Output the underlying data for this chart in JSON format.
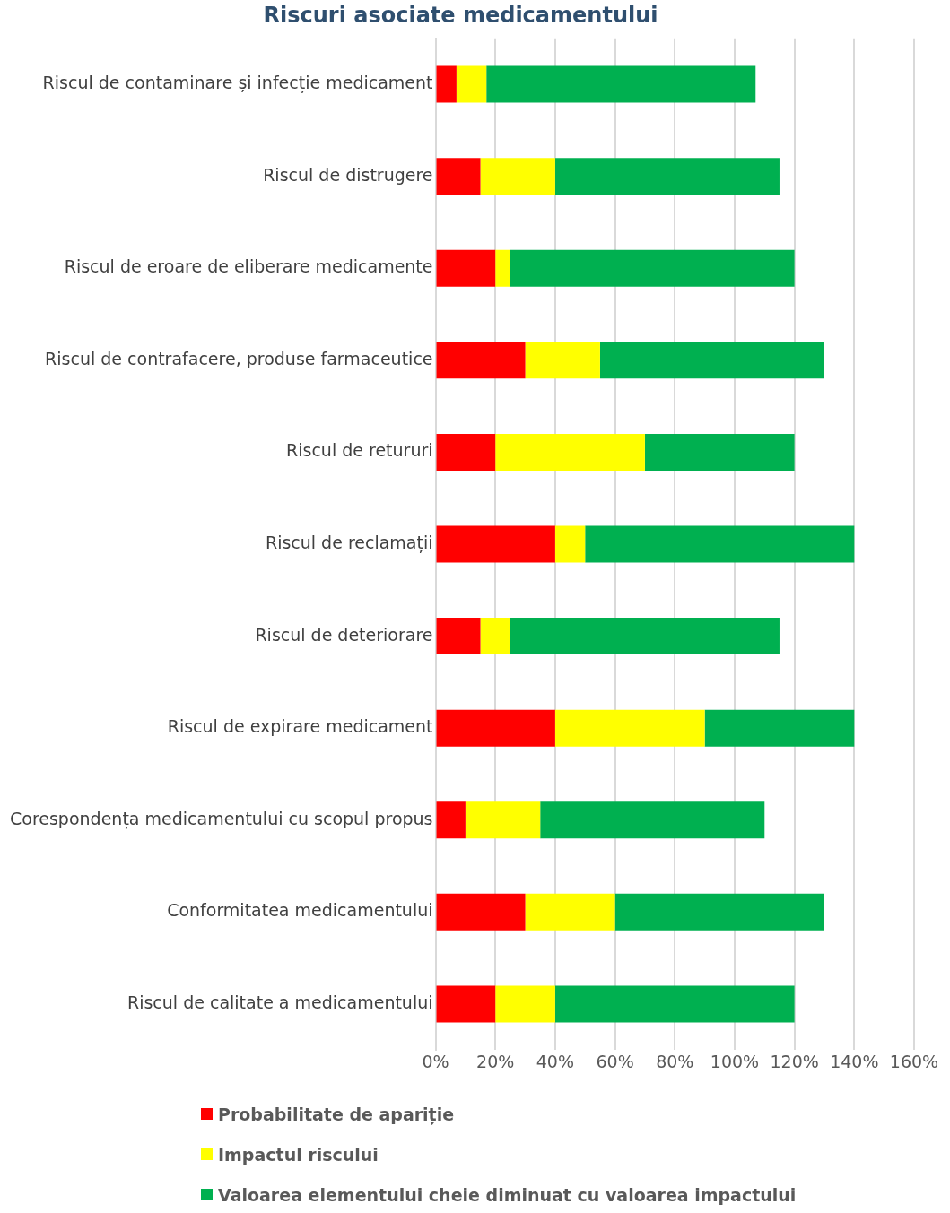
{
  "chart_data": {
    "type": "bar",
    "orientation": "horizontal",
    "stacked": true,
    "title": "Riscuri asociate medicamentului",
    "categories": [
      "Riscul de contaminare și infecție medicament",
      "Riscul de distrugere",
      "Riscul de eroare de eliberare medicamente",
      "Riscul de contrafacere, produse farmaceutice",
      "Riscul de retururi",
      "Riscul de reclamații",
      "Riscul de deteriorare",
      "Riscul de expirare medicament",
      "Corespondența medicamentului cu scopul propus",
      "Conformitatea medicamentului",
      "Riscul de calitate a medicamentului"
    ],
    "series": [
      {
        "name": "Probabilitate de apariție",
        "color": "#ff0000",
        "values": [
          7,
          15,
          20,
          30,
          20,
          40,
          15,
          40,
          10,
          30,
          20
        ]
      },
      {
        "name": "Impactul riscului",
        "color": "#ffff00",
        "values": [
          10,
          25,
          5,
          25,
          50,
          10,
          10,
          50,
          25,
          30,
          20
        ]
      },
      {
        "name": "Valoarea elementului cheie diminuat cu valoarea impactului",
        "color": "#00b050",
        "values": [
          90,
          75,
          95,
          75,
          50,
          90,
          90,
          50,
          75,
          70,
          80
        ]
      }
    ],
    "xlim": [
      0,
      160
    ],
    "xticks": [
      {
        "value": 0,
        "label": "0%"
      },
      {
        "value": 20,
        "label": "20%"
      },
      {
        "value": 40,
        "label": "40%"
      },
      {
        "value": 60,
        "label": "60%"
      },
      {
        "value": 80,
        "label": "80%"
      },
      {
        "value": 100,
        "label": "100%"
      },
      {
        "value": 120,
        "label": "120%"
      },
      {
        "value": 140,
        "label": "140%"
      },
      {
        "value": 160,
        "label": "160%"
      }
    ],
    "grid": "x",
    "legend": "bottom"
  }
}
